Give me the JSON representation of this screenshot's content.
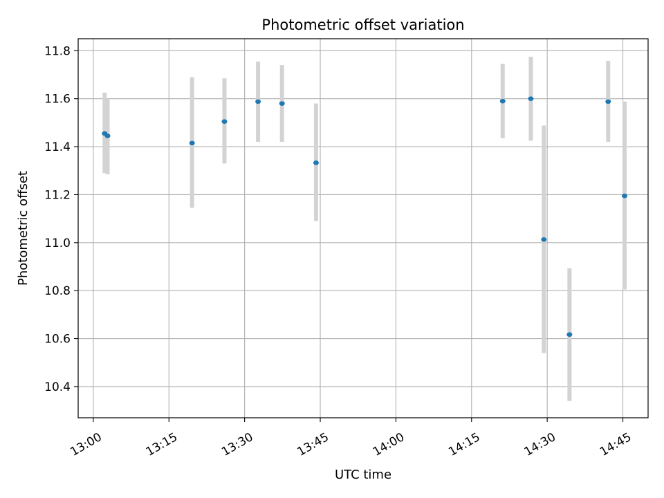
{
  "chart_data": {
    "type": "scatter",
    "title": "Photometric offset variation",
    "xlabel": "UTC time",
    "ylabel": "Photometric offset",
    "x_ticks": [
      "13:00",
      "13:15",
      "13:30",
      "13:45",
      "14:00",
      "14:15",
      "14:30",
      "14:45"
    ],
    "x_tick_minutes": [
      780,
      795,
      810,
      825,
      840,
      855,
      870,
      885
    ],
    "y_ticks": [
      "10.4",
      "10.6",
      "10.8",
      "11.0",
      "11.2",
      "11.4",
      "11.6",
      "11.8"
    ],
    "y_tick_values": [
      10.4,
      10.6,
      10.8,
      11.0,
      11.2,
      11.4,
      11.6,
      11.8
    ],
    "xlim": [
      "12:57",
      "14:50"
    ],
    "ylim": [
      10.27,
      11.85
    ],
    "grid": true,
    "marker_color": "#1f77b4",
    "errorbar_color": "#d3d3d3",
    "points": [
      {
        "time": "13:02:15",
        "y": 11.455,
        "low": 11.29,
        "high": 11.625
      },
      {
        "time": "13:02:50",
        "y": 11.445,
        "low": 11.285,
        "high": 11.6
      },
      {
        "time": "13:19:35",
        "y": 11.415,
        "low": 11.145,
        "high": 11.69
      },
      {
        "time": "13:26:00",
        "y": 11.505,
        "low": 11.33,
        "high": 11.685
      },
      {
        "time": "13:32:40",
        "y": 11.588,
        "low": 11.42,
        "high": 11.755
      },
      {
        "time": "13:37:25",
        "y": 11.58,
        "low": 11.42,
        "high": 11.74
      },
      {
        "time": "13:44:10",
        "y": 11.333,
        "low": 11.09,
        "high": 11.58
      },
      {
        "time": "14:21:10",
        "y": 11.59,
        "low": 11.435,
        "high": 11.745
      },
      {
        "time": "14:26:45",
        "y": 11.6,
        "low": 11.425,
        "high": 11.775
      },
      {
        "time": "14:29:20",
        "y": 11.013,
        "low": 10.54,
        "high": 11.488
      },
      {
        "time": "14:34:25",
        "y": 10.617,
        "low": 10.34,
        "high": 10.893
      },
      {
        "time": "14:42:05",
        "y": 11.588,
        "low": 11.42,
        "high": 11.758
      },
      {
        "time": "14:45:20",
        "y": 11.195,
        "low": 10.805,
        "high": 11.588
      }
    ]
  }
}
